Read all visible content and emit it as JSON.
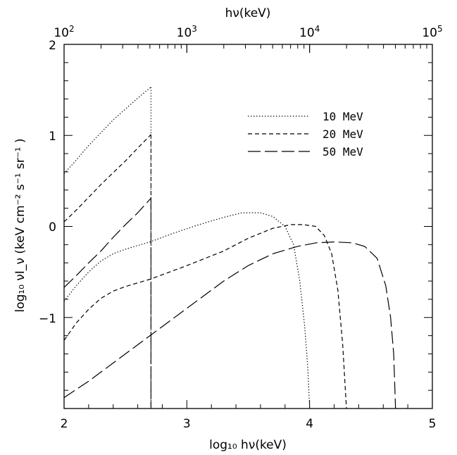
{
  "chart_data": {
    "type": "line",
    "title": "",
    "xlabel": "log₁₀ hν(keV)",
    "ylabel": "log₁₀ νI_ν (keV cm⁻² s⁻¹ sr⁻¹ )",
    "top_xlabel": "hν(keV)",
    "xlim": [
      2,
      5
    ],
    "ylim": [
      -2,
      2
    ],
    "x_ticks": [
      "2",
      "3",
      "4",
      "5"
    ],
    "y_ticks": [
      "−1",
      "0",
      "1",
      "2"
    ],
    "top_ticks": [
      {
        "value": 2,
        "base": "10",
        "exp": "2"
      },
      {
        "value": 3,
        "base": "10",
        "exp": "3"
      },
      {
        "value": 4,
        "base": "10",
        "exp": "4"
      },
      {
        "value": 5,
        "base": "10",
        "exp": "5"
      }
    ],
    "grid": false,
    "legend_position": "top-right",
    "series": [
      {
        "name": "10 MeV",
        "style": "dotted",
        "segments": [
          [
            [
              2.0,
              0.58
            ],
            [
              2.1,
              0.73
            ],
            [
              2.2,
              0.89
            ],
            [
              2.3,
              1.03
            ],
            [
              2.4,
              1.17
            ],
            [
              2.5,
              1.29
            ],
            [
              2.6,
              1.41
            ],
            [
              2.708,
              1.53
            ]
          ],
          [
            [
              2.0,
              -0.82
            ],
            [
              2.1,
              -0.65
            ],
            [
              2.2,
              -0.5
            ],
            [
              2.3,
              -0.38
            ],
            [
              2.4,
              -0.3
            ],
            [
              2.5,
              -0.25
            ],
            [
              2.6,
              -0.21
            ],
            [
              2.7,
              -0.17
            ],
            [
              2.9,
              -0.07
            ],
            [
              3.1,
              0.02
            ],
            [
              3.3,
              0.1
            ],
            [
              3.45,
              0.15
            ],
            [
              3.6,
              0.15
            ],
            [
              3.7,
              0.11
            ],
            [
              3.8,
              0.0
            ],
            [
              3.87,
              -0.2
            ],
            [
              3.92,
              -0.6
            ],
            [
              3.96,
              -1.1
            ],
            [
              3.985,
              -1.55
            ],
            [
              4.0,
              -2.0
            ]
          ]
        ]
      },
      {
        "name": "20 MeV",
        "style": "short-dashed",
        "segments": [
          [
            [
              2.0,
              0.05
            ],
            [
              2.1,
              0.18
            ],
            [
              2.2,
              0.32
            ],
            [
              2.3,
              0.46
            ],
            [
              2.4,
              0.59
            ],
            [
              2.5,
              0.72
            ],
            [
              2.6,
              0.86
            ],
            [
              2.708,
              1.01
            ]
          ],
          [
            [
              2.0,
              -1.25
            ],
            [
              2.1,
              -1.06
            ],
            [
              2.2,
              -0.91
            ],
            [
              2.3,
              -0.79
            ],
            [
              2.4,
              -0.71
            ],
            [
              2.5,
              -0.66
            ],
            [
              2.6,
              -0.62
            ],
            [
              2.7,
              -0.58
            ],
            [
              3.0,
              -0.43
            ],
            [
              3.3,
              -0.27
            ],
            [
              3.5,
              -0.13
            ],
            [
              3.7,
              -0.02
            ],
            [
              3.85,
              0.02
            ],
            [
              3.95,
              0.02
            ],
            [
              4.05,
              0.0
            ],
            [
              4.12,
              -0.1
            ],
            [
              4.18,
              -0.3
            ],
            [
              4.23,
              -0.7
            ],
            [
              4.27,
              -1.3
            ],
            [
              4.3,
              -2.0
            ]
          ]
        ]
      },
      {
        "name": "50 MeV",
        "style": "long-dashed",
        "segments": [
          [
            [
              2.0,
              -0.67
            ],
            [
              2.1,
              -0.54
            ],
            [
              2.2,
              -0.4
            ],
            [
              2.3,
              -0.27
            ],
            [
              2.4,
              -0.12
            ],
            [
              2.5,
              0.02
            ],
            [
              2.6,
              0.15
            ],
            [
              2.708,
              0.31
            ]
          ],
          [
            [
              2.0,
              -1.88
            ],
            [
              2.2,
              -1.7
            ],
            [
              2.4,
              -1.5
            ],
            [
              2.6,
              -1.3
            ],
            [
              2.7,
              -1.2
            ],
            [
              3.0,
              -0.9
            ],
            [
              3.3,
              -0.6
            ],
            [
              3.5,
              -0.43
            ],
            [
              3.7,
              -0.3
            ],
            [
              3.9,
              -0.22
            ],
            [
              4.05,
              -0.18
            ],
            [
              4.2,
              -0.17
            ],
            [
              4.35,
              -0.18
            ],
            [
              4.45,
              -0.22
            ],
            [
              4.55,
              -0.35
            ],
            [
              4.62,
              -0.65
            ],
            [
              4.66,
              -1.0
            ],
            [
              4.685,
              -1.4
            ],
            [
              4.7,
              -2.0
            ]
          ]
        ]
      }
    ],
    "edge_x": 2.708
  }
}
